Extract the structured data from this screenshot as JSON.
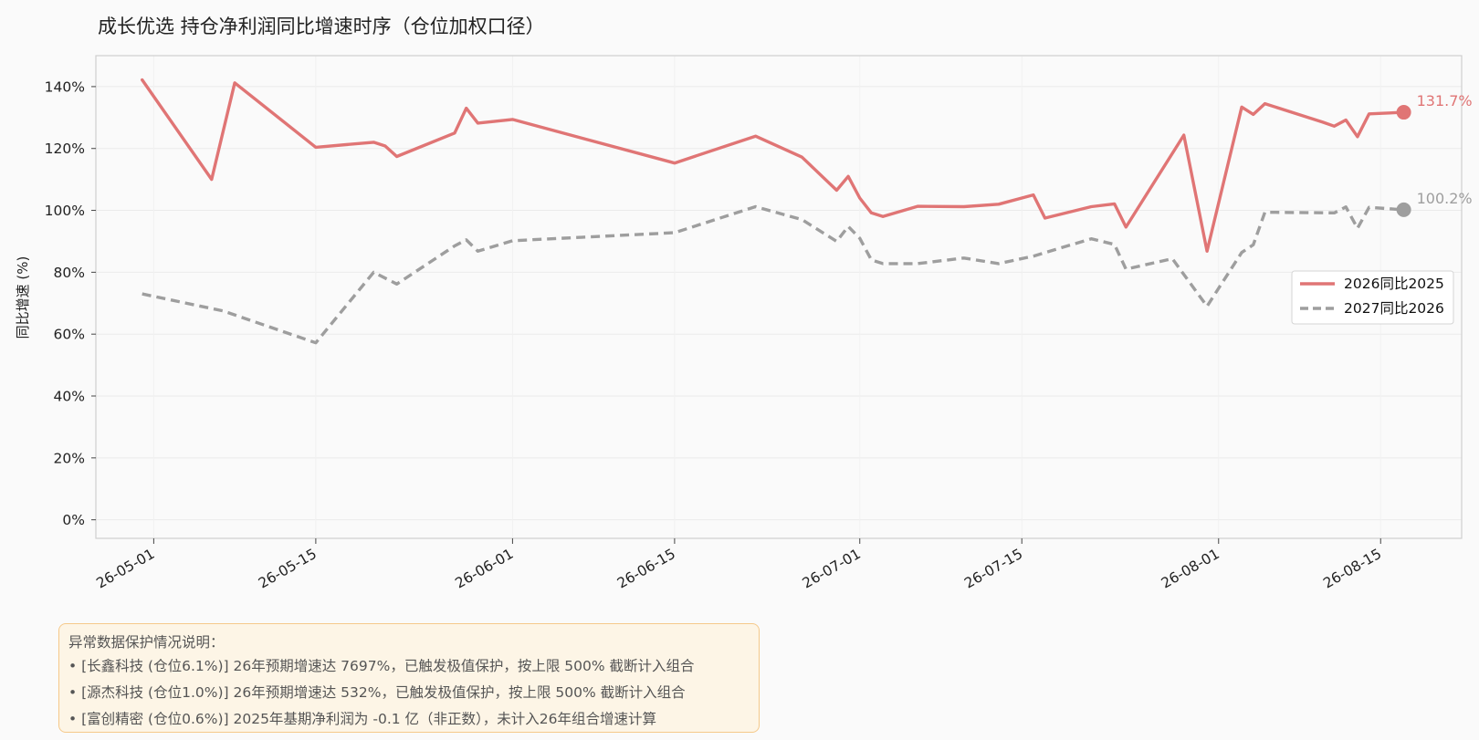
{
  "chart_data": {
    "type": "line",
    "title": "成长优选  持仓净利润同比增速时序（仓位加权口径）",
    "xlabel": "",
    "ylabel": "同比增速 (%)",
    "ylim": [
      -6,
      150
    ],
    "xlim": [
      "2026-04-26",
      "2026-08-22"
    ],
    "yticks": [
      0,
      20,
      40,
      60,
      80,
      100,
      120,
      140
    ],
    "ytick_labels": [
      "0%",
      "20%",
      "40%",
      "60%",
      "80%",
      "100%",
      "120%",
      "140%"
    ],
    "xticks": [
      "2026-05-01",
      "2026-05-15",
      "2026-06-01",
      "2026-06-15",
      "2026-07-01",
      "2026-07-15",
      "2026-08-01",
      "2026-08-15"
    ],
    "xtick_labels": [
      "26-05-01",
      "26-05-15",
      "26-06-01",
      "26-06-15",
      "26-07-01",
      "26-07-15",
      "26-08-01",
      "26-08-15"
    ],
    "grid": true,
    "legend_position": "right",
    "series": [
      {
        "name": "2026同比2025",
        "color": "#e07575",
        "style": "solid",
        "end_label": "131.7%",
        "points": [
          [
            "2026-04-30",
            142.2
          ],
          [
            "2026-05-06",
            110.0
          ],
          [
            "2026-05-08",
            141.2
          ],
          [
            "2026-05-15",
            120.4
          ],
          [
            "2026-05-20",
            122.0
          ],
          [
            "2026-05-21",
            120.8
          ],
          [
            "2026-05-22",
            117.4
          ],
          [
            "2026-05-27",
            125.0
          ],
          [
            "2026-05-28",
            133.0
          ],
          [
            "2026-05-29",
            128.2
          ],
          [
            "2026-06-01",
            129.4
          ],
          [
            "2026-06-15",
            115.3
          ],
          [
            "2026-06-22",
            124.0
          ],
          [
            "2026-06-26",
            117.2
          ],
          [
            "2026-06-29",
            106.5
          ],
          [
            "2026-06-30",
            111.0
          ],
          [
            "2026-07-01",
            104.0
          ],
          [
            "2026-07-02",
            99.2
          ],
          [
            "2026-07-03",
            98.0
          ],
          [
            "2026-07-06",
            101.3
          ],
          [
            "2026-07-10",
            101.2
          ],
          [
            "2026-07-13",
            102.0
          ],
          [
            "2026-07-16",
            105.0
          ],
          [
            "2026-07-17",
            97.5
          ],
          [
            "2026-07-21",
            101.2
          ],
          [
            "2026-07-23",
            102.1
          ],
          [
            "2026-07-24",
            94.6
          ],
          [
            "2026-07-29",
            124.3
          ],
          [
            "2026-07-31",
            86.8
          ],
          [
            "2026-08-03",
            133.4
          ],
          [
            "2026-08-04",
            131.0
          ],
          [
            "2026-08-05",
            134.5
          ],
          [
            "2026-08-10",
            128.5
          ],
          [
            "2026-08-11",
            127.2
          ],
          [
            "2026-08-12",
            129.2
          ],
          [
            "2026-08-13",
            123.8
          ],
          [
            "2026-08-14",
            131.2
          ],
          [
            "2026-08-17",
            131.7
          ]
        ]
      },
      {
        "name": "2027同比2026",
        "color": "#9e9e9e",
        "style": "dashed",
        "end_label": "100.2%",
        "points": [
          [
            "2026-04-30",
            73.0
          ],
          [
            "2026-05-07",
            67.5
          ],
          [
            "2026-05-15",
            57.2
          ],
          [
            "2026-05-20",
            80.0
          ],
          [
            "2026-05-22",
            76.2
          ],
          [
            "2026-05-27",
            88.5
          ],
          [
            "2026-05-28",
            90.5
          ],
          [
            "2026-05-29",
            86.8
          ],
          [
            "2026-06-01",
            90.2
          ],
          [
            "2026-06-15",
            92.8
          ],
          [
            "2026-06-22",
            101.2
          ],
          [
            "2026-06-26",
            97.0
          ],
          [
            "2026-06-29",
            90.0
          ],
          [
            "2026-06-30",
            94.8
          ],
          [
            "2026-07-01",
            91.0
          ],
          [
            "2026-07-02",
            84.0
          ],
          [
            "2026-07-03",
            82.8
          ],
          [
            "2026-07-06",
            82.8
          ],
          [
            "2026-07-10",
            84.6
          ],
          [
            "2026-07-13",
            82.8
          ],
          [
            "2026-07-16",
            85.2
          ],
          [
            "2026-07-21",
            90.8
          ],
          [
            "2026-07-23",
            89.0
          ],
          [
            "2026-07-24",
            81.0
          ],
          [
            "2026-07-28",
            84.4
          ],
          [
            "2026-07-31",
            69.0
          ],
          [
            "2026-08-03",
            86.4
          ],
          [
            "2026-08-04",
            88.9
          ],
          [
            "2026-08-05",
            99.4
          ],
          [
            "2026-08-11",
            99.2
          ],
          [
            "2026-08-12",
            101.1
          ],
          [
            "2026-08-13",
            94.2
          ],
          [
            "2026-08-14",
            101.0
          ],
          [
            "2026-08-17",
            100.2
          ]
        ]
      }
    ]
  },
  "note": {
    "title": "异常数据保护情况说明：",
    "lines": [
      "• [长鑫科技 (仓位6.1%)] 26年预期增速达 7697%，已触发极值保护，按上限 500% 截断计入组合",
      "• [源杰科技 (仓位1.0%)] 26年预期增速达 532%，已触发极值保护，按上限 500% 截断计入组合",
      "• [富创精密 (仓位0.6%)] 2025年基期净利润为 -0.1 亿（非正数），未计入26年组合增速计算"
    ]
  }
}
